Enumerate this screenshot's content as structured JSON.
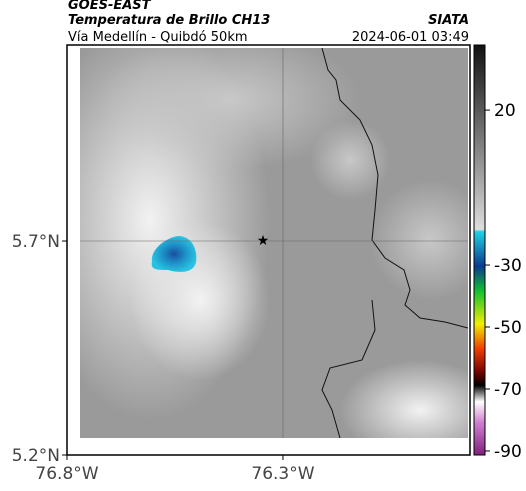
{
  "header": {
    "source": "GOES-EAST",
    "title": "Temperatura de Brillo CH13",
    "subtitle": "Vía Medellín - Quibdó 50km",
    "agency": "SIATA",
    "timestamp": "2024-06-01 03:49"
  },
  "map": {
    "xlim": [
      -76.8,
      -75.867
    ],
    "ylim": [
      5.2,
      6.158
    ],
    "xticks": [
      {
        "value": -76.8,
        "label": "76.8°W"
      },
      {
        "value": -76.3,
        "label": "76.3°W"
      }
    ],
    "yticks": [
      {
        "value": 5.2,
        "label": "5.2°N"
      },
      {
        "value": 5.7,
        "label": "5.7°N"
      }
    ]
  },
  "colorbar": {
    "lim": [
      -91.3,
      41
    ],
    "ticks": [
      20,
      -30,
      -50,
      -70,
      -90
    ]
  }
}
